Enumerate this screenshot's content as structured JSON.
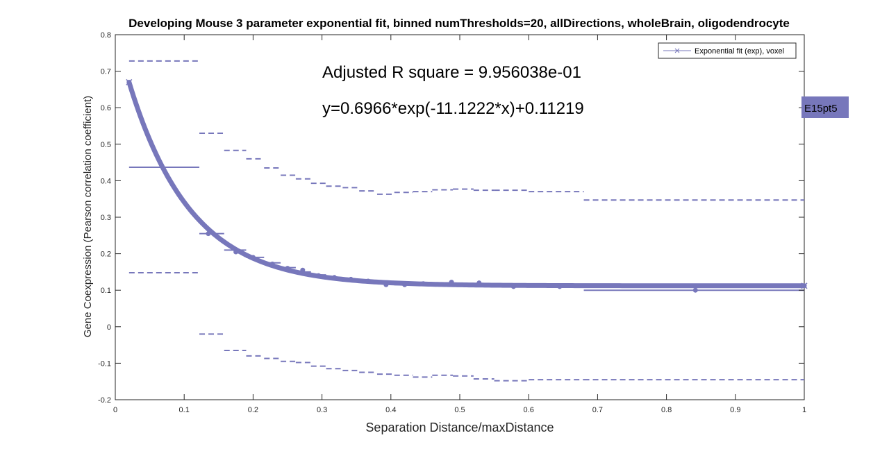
{
  "chart_data": {
    "type": "scatter",
    "title": "Developing Mouse 3 parameter exponential fit, binned numThresholds=20, allDirections, wholeBrain, oligodendrocyte",
    "xlabel": "Separation Distance/maxDistance",
    "ylabel": "Gene Coexpression (Pearson correlation coefficient)",
    "xlim": [
      0,
      1
    ],
    "ylim": [
      -0.2,
      0.8
    ],
    "xticks": [
      "0",
      "0.1",
      "0.2",
      "0.3",
      "0.4",
      "0.5",
      "0.6",
      "0.7",
      "0.8",
      "0.9",
      "1"
    ],
    "yticks": [
      "-0.2",
      "-0.1",
      "0",
      "0.1",
      "0.2",
      "0.3",
      "0.4",
      "0.5",
      "0.6",
      "0.7",
      "0.8"
    ],
    "grid": false,
    "legend_location": "top-right",
    "legend": [
      "Exponential fit (exp), voxel"
    ],
    "color": "#7777bb",
    "annotations": [
      "Adjusted R square = 9.956038e-01",
      "y=0.6966*exp(-11.1222*x)+0.11219"
    ],
    "side_label": "E15pt5",
    "fit": {
      "a": 0.6966,
      "b": -11.1222,
      "c": 0.11219,
      "x_range": [
        0.02,
        1.0
      ]
    },
    "bins": [
      {
        "x0": 0.02,
        "x1": 0.122,
        "mean": 0.437,
        "upper": 0.728,
        "lower": 0.148
      },
      {
        "x0": 0.122,
        "x1": 0.158,
        "mean": 0.255,
        "upper": 0.53,
        "lower": -0.02
      },
      {
        "x0": 0.158,
        "x1": 0.19,
        "mean": 0.21,
        "upper": 0.483,
        "lower": -0.065
      },
      {
        "x0": 0.19,
        "x1": 0.216,
        "mean": 0.19,
        "upper": 0.46,
        "lower": -0.08
      },
      {
        "x0": 0.216,
        "x1": 0.24,
        "mean": 0.175,
        "upper": 0.435,
        "lower": -0.087
      },
      {
        "x0": 0.24,
        "x1": 0.262,
        "mean": 0.162,
        "upper": 0.415,
        "lower": -0.095
      },
      {
        "x0": 0.262,
        "x1": 0.284,
        "mean": 0.15,
        "upper": 0.405,
        "lower": -0.098
      },
      {
        "x0": 0.284,
        "x1": 0.306,
        "mean": 0.142,
        "upper": 0.393,
        "lower": -0.108
      },
      {
        "x0": 0.306,
        "x1": 0.33,
        "mean": 0.133,
        "upper": 0.385,
        "lower": -0.115
      },
      {
        "x0": 0.33,
        "x1": 0.354,
        "mean": 0.128,
        "upper": 0.381,
        "lower": -0.12
      },
      {
        "x0": 0.354,
        "x1": 0.38,
        "mean": 0.125,
        "upper": 0.372,
        "lower": -0.125
      },
      {
        "x0": 0.38,
        "x1": 0.405,
        "mean": 0.118,
        "upper": 0.363,
        "lower": -0.13
      },
      {
        "x0": 0.405,
        "x1": 0.432,
        "mean": 0.115,
        "upper": 0.368,
        "lower": -0.133
      },
      {
        "x0": 0.432,
        "x1": 0.46,
        "mean": 0.118,
        "upper": 0.37,
        "lower": -0.138
      },
      {
        "x0": 0.46,
        "x1": 0.49,
        "mean": 0.12,
        "upper": 0.375,
        "lower": -0.133
      },
      {
        "x0": 0.49,
        "x1": 0.52,
        "mean": 0.118,
        "upper": 0.377,
        "lower": -0.135
      },
      {
        "x0": 0.52,
        "x1": 0.55,
        "mean": 0.115,
        "upper": 0.374,
        "lower": -0.143
      },
      {
        "x0": 0.55,
        "x1": 0.6,
        "mean": 0.112,
        "upper": 0.374,
        "lower": -0.148
      },
      {
        "x0": 0.6,
        "x1": 0.68,
        "mean": 0.112,
        "upper": 0.37,
        "lower": -0.145
      },
      {
        "x0": 0.68,
        "x1": 1.0,
        "mean": 0.1,
        "upper": 0.347,
        "lower": -0.145
      }
    ],
    "points": [
      {
        "x": 0.135,
        "y": 0.255
      },
      {
        "x": 0.175,
        "y": 0.205
      },
      {
        "x": 0.2,
        "y": 0.19
      },
      {
        "x": 0.228,
        "y": 0.172
      },
      {
        "x": 0.25,
        "y": 0.16
      },
      {
        "x": 0.272,
        "y": 0.155
      },
      {
        "x": 0.295,
        "y": 0.14
      },
      {
        "x": 0.318,
        "y": 0.135
      },
      {
        "x": 0.342,
        "y": 0.13
      },
      {
        "x": 0.367,
        "y": 0.125
      },
      {
        "x": 0.393,
        "y": 0.115
      },
      {
        "x": 0.42,
        "y": 0.115
      },
      {
        "x": 0.447,
        "y": 0.118
      },
      {
        "x": 0.488,
        "y": 0.122
      },
      {
        "x": 0.528,
        "y": 0.12
      },
      {
        "x": 0.578,
        "y": 0.11
      },
      {
        "x": 0.645,
        "y": 0.11
      },
      {
        "x": 0.842,
        "y": 0.1
      }
    ]
  }
}
